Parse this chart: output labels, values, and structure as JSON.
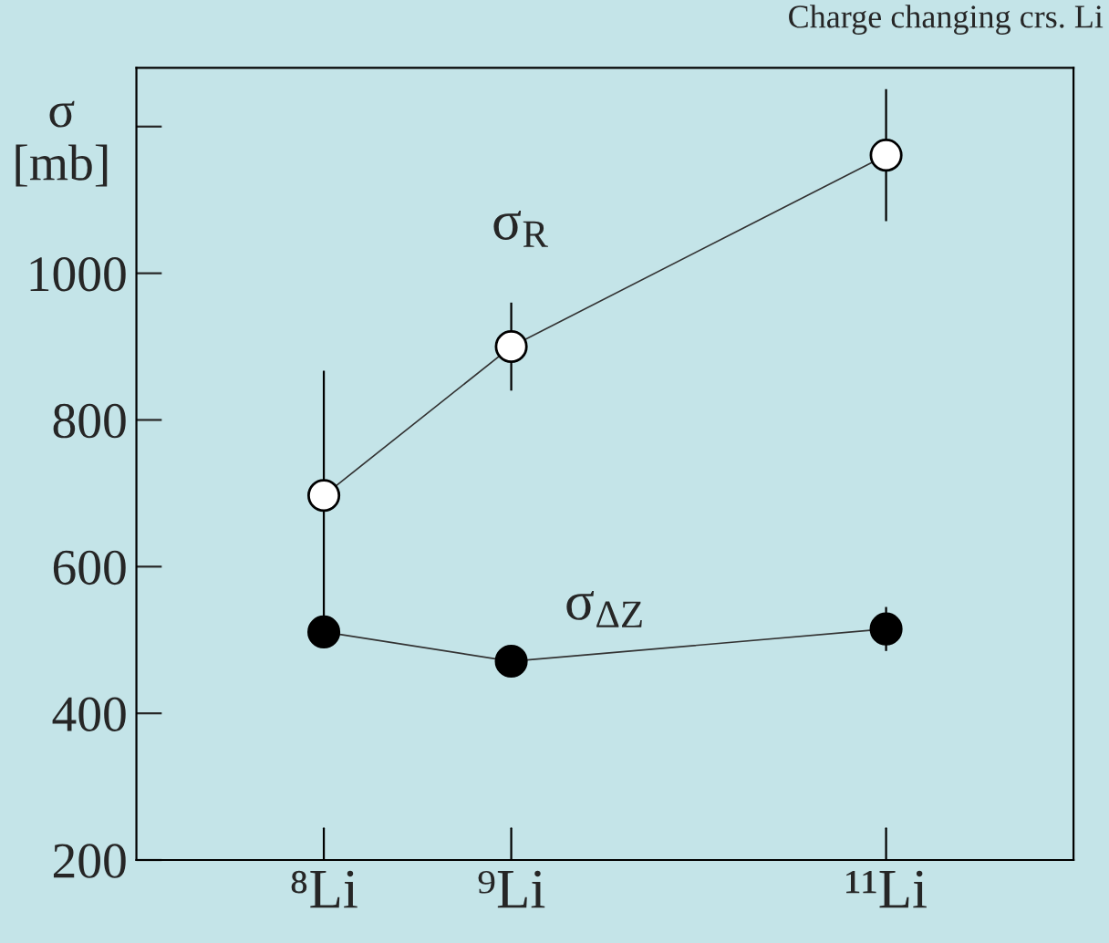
{
  "chart_data": {
    "type": "line",
    "title": "Charge changing crs. Li",
    "ylabel": "σ\n[mb]",
    "categories": [
      "⁸Li",
      "⁹Li",
      null,
      "¹¹Li"
    ],
    "series": [
      {
        "color": "#ffffff",
        "values": [
          697,
          900,
          null,
          1161
        ],
        "errors": [
          170,
          60,
          null,
          90
        ]
      },
      {
        "color": "#000000",
        "values": [
          511,
          471,
          null,
          515
        ],
        "errors": [
          null,
          null,
          null,
          30
        ]
      }
    ],
    "annotations": [
      "σ$_{R}$",
      "σ$_{ΔZ}$"
    ],
    "ylim": [
      200,
      1280
    ],
    "yticks": [
      200,
      400,
      600,
      800,
      1000,
      {
        "value": 1200,
        "label": null
      }
    ],
    "marker": "circle",
    "line_style": "solid",
    "grid": false,
    "legend": false
  }
}
